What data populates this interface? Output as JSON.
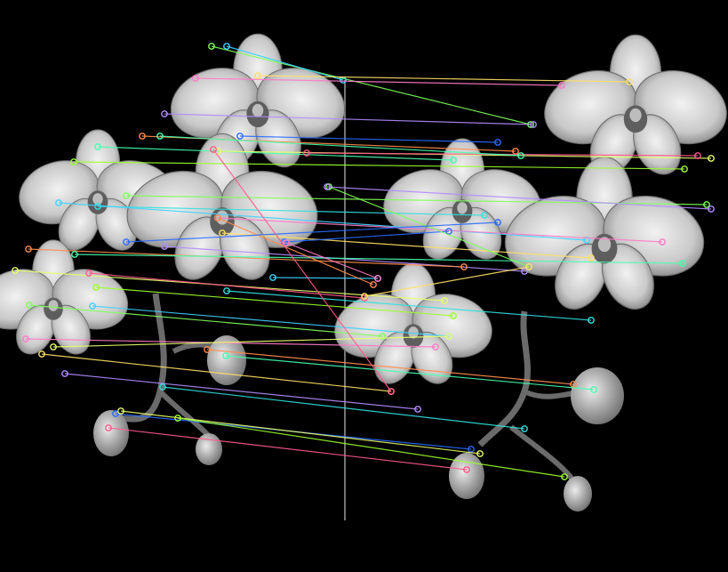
{
  "image": {
    "background": "#000000",
    "flower_fill": "#d9d9d9",
    "flower_shade": "#8a8a8a",
    "divider_color": "#9a9a9a",
    "match_colors": [
      "#7fff5a",
      "#3fd2ff",
      "#ff7ac8",
      "#ffe066",
      "#b38cff",
      "#ff8c4d",
      "#44ffb0",
      "#2a6bff",
      "#e8ff6b",
      "#ff5a8c",
      "#9cff2e",
      "#32e0e0"
    ],
    "keypoint_pair_count": 46
  }
}
